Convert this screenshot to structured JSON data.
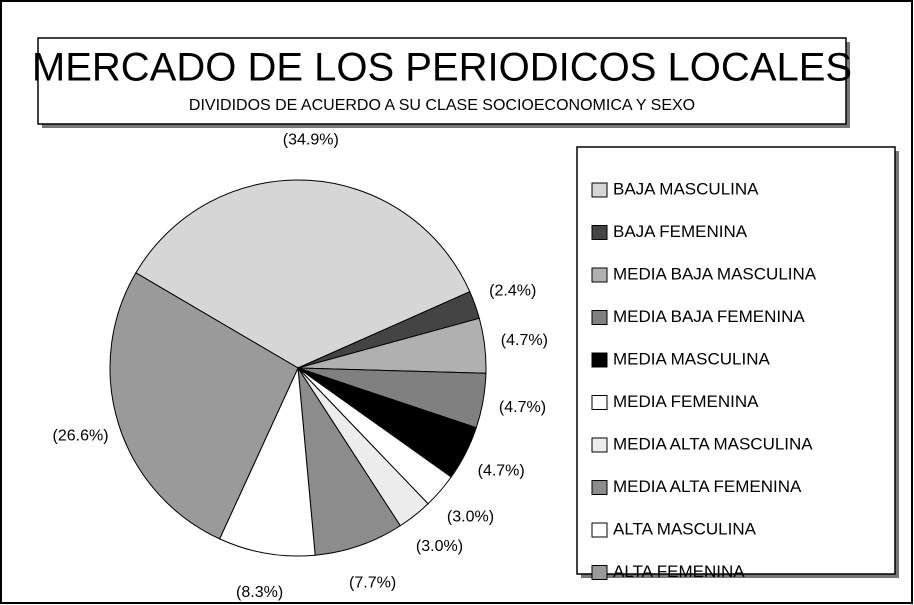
{
  "chart_data": {
    "type": "pie",
    "title": "MERCADO DE LOS PERIODICOS LOCALES",
    "subtitle": "DIVIDIDOS DE ACUERDO A SU CLASE SOCIOECONOMICA Y SEXO",
    "categories": [
      "BAJA MASCULINA",
      "BAJA FEMENINA",
      "MEDIA BAJA MASCULINA",
      "MEDIA BAJA FEMENINA",
      "MEDIA MASCULINA",
      "MEDIA FEMENINA",
      "MEDIA  ALTA MASCULINA",
      "MEDIA ALTA FEMENINA",
      "ALTA MASCULINA",
      "ALTA FEMENINA"
    ],
    "values": [
      34.9,
      2.4,
      4.7,
      4.7,
      4.7,
      3.0,
      3.0,
      7.7,
      8.3,
      26.6
    ],
    "value_labels": [
      "(34.9%)",
      "(2.4%)",
      "(4.7%)",
      "(4.7%)",
      "(4.7%)",
      "(3.0%)",
      "(3.0%)",
      "(7.7%)",
      "(8.3%)",
      "(26.6%)"
    ],
    "colors": [
      "#d6d6d6",
      "#444444",
      "#b0b0b0",
      "#808080",
      "#000000",
      "#ffffff",
      "#ececec",
      "#8c8c8c",
      "#ffffff",
      "#9a9a9a"
    ],
    "legend": "right"
  }
}
